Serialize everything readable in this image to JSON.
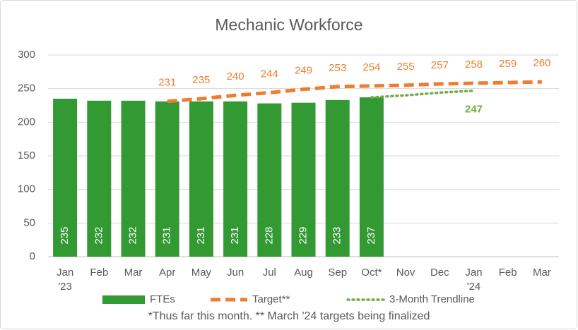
{
  "chart_data": {
    "type": "bar",
    "title": "Mechanic Workforce",
    "footnote": "*Thus far this month. ** March '24 targets being finalized",
    "categories": [
      "Jan\n'23",
      "Feb",
      "Mar",
      "Apr",
      "May",
      "Jun",
      "Jul",
      "Aug",
      "Sep",
      "Oct*",
      "Nov",
      "Dec",
      "Jan\n'24",
      "Feb",
      "Mar"
    ],
    "series": [
      {
        "name": "FTEs",
        "type": "bar",
        "color": "#339933",
        "values": [
          235,
          232,
          232,
          231,
          231,
          231,
          228,
          229,
          233,
          237,
          null,
          null,
          null,
          null,
          null
        ]
      },
      {
        "name": "Target**",
        "type": "line",
        "style": "dashed",
        "color": "#ed7d31",
        "values": [
          null,
          null,
          null,
          231,
          235,
          240,
          244,
          249,
          253,
          254,
          255,
          257,
          258,
          259,
          260
        ]
      },
      {
        "name": "3-Month Trendline",
        "type": "line",
        "style": "dotted",
        "color": "#70ad47",
        "values": [
          null,
          null,
          null,
          null,
          null,
          null,
          null,
          null,
          null,
          237,
          240,
          244,
          247,
          null,
          null
        ],
        "value_labels": [
          null,
          null,
          null,
          null,
          null,
          null,
          null,
          null,
          null,
          null,
          null,
          null,
          "247",
          null,
          null
        ]
      }
    ],
    "ylim": [
      0,
      300
    ],
    "yticks": [
      0,
      50,
      100,
      150,
      200,
      250,
      300
    ],
    "grid": true,
    "legend": "bottom"
  }
}
